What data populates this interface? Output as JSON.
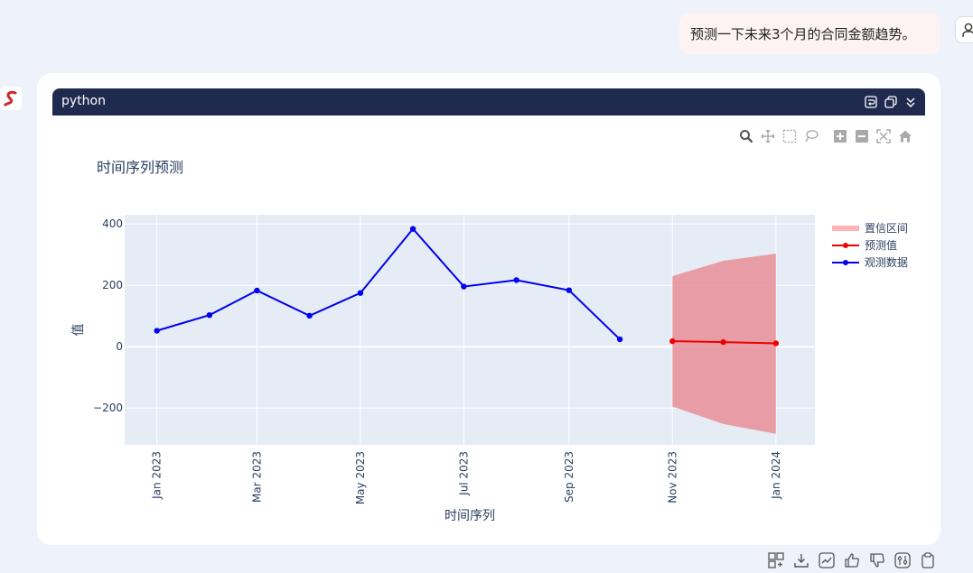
{
  "chat": {
    "user_message": "预测一下未来3个月的合同金额趋势。"
  },
  "code_block": {
    "language": "python",
    "header_icons": [
      "wrap-icon",
      "copy-icon",
      "collapse-icon"
    ]
  },
  "modebar": {
    "icons": [
      "zoom-icon",
      "pan-icon",
      "box-select-icon",
      "lasso-icon",
      "zoom-in-icon",
      "zoom-out-icon",
      "autoscale-icon",
      "reset-axes-icon"
    ]
  },
  "bottom_toolbar": {
    "icons": [
      "calculator-icon",
      "download-icon",
      "trend-chart-icon",
      "thumbs-up-icon",
      "thumbs-down-icon",
      "settings-icon",
      "clipboard-icon"
    ]
  },
  "colors": {
    "observed": "#0000ee",
    "forecast": "#ee0000",
    "ci_fill": "#e8959d",
    "plot_bg": "#e5ecf6",
    "header_bg": "#1f2a4f"
  },
  "chart_data": {
    "type": "line",
    "title": "时间序列预测",
    "xlabel": "时间序列",
    "ylabel": "值",
    "x_ticks": [
      "Jan 2023",
      "Mar 2023",
      "May 2023",
      "Jul 2023",
      "Sep 2023",
      "Nov 2023",
      "Jan 2024"
    ],
    "y_ticks": [
      "400",
      "200",
      "0",
      "−200"
    ],
    "ylim": [
      -320,
      430
    ],
    "xlim": [
      "2022-12-13",
      "2024-01-24"
    ],
    "grid": true,
    "legend_position": "top-right",
    "series": [
      {
        "name": "观测数据",
        "style": "lines+markers",
        "x": [
          "2023-01-01",
          "2023-02-01",
          "2023-03-01",
          "2023-04-01",
          "2023-05-01",
          "2023-06-01",
          "2023-07-01",
          "2023-08-01",
          "2023-09-01",
          "2023-10-01"
        ],
        "y": [
          52,
          103,
          183,
          101,
          175,
          384,
          196,
          217,
          184,
          24
        ]
      },
      {
        "name": "预测值",
        "style": "lines+markers",
        "x": [
          "2023-11-01",
          "2023-12-01",
          "2024-01-01"
        ],
        "y": [
          18,
          15,
          11
        ]
      },
      {
        "name": "置信区间",
        "style": "band",
        "x": [
          "2023-11-01",
          "2023-12-01",
          "2024-01-01"
        ],
        "upper": [
          230,
          280,
          303
        ],
        "lower": [
          -195,
          -252,
          -284
        ]
      }
    ],
    "legend_order": [
      "置信区间",
      "预测值",
      "观测数据"
    ]
  }
}
